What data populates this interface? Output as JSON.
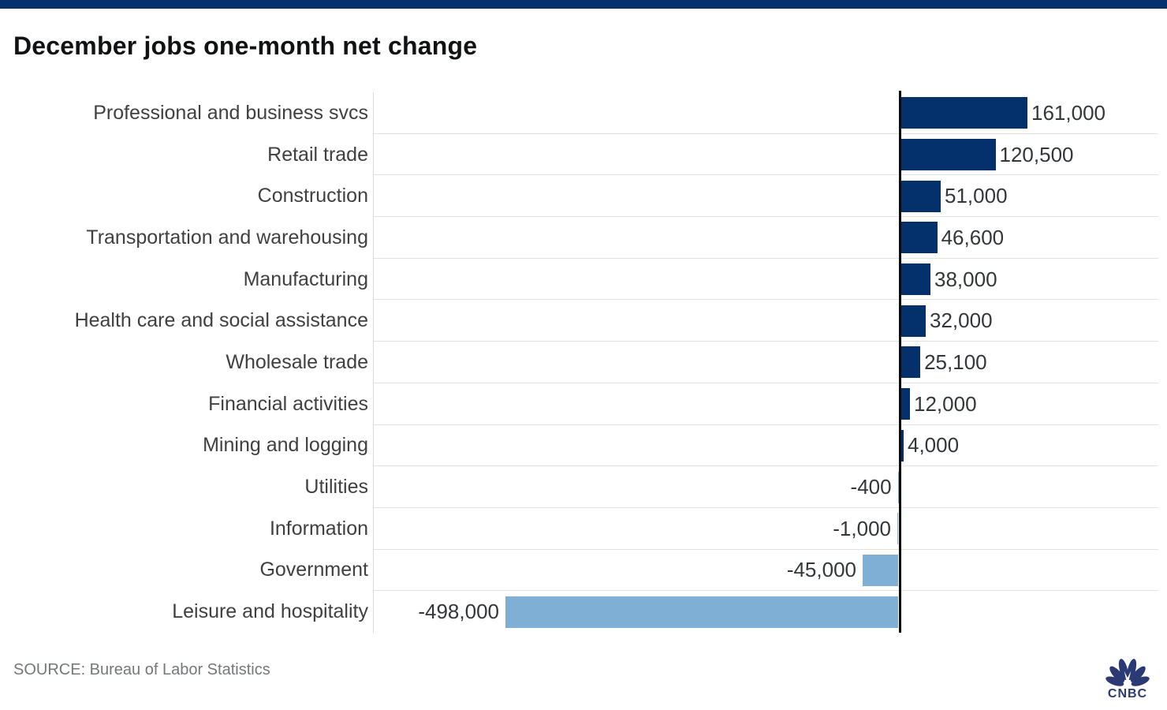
{
  "page": {
    "title": "December jobs one-month net change",
    "source": "SOURCE: Bureau of Labor Statistics",
    "brand": "CNBC"
  },
  "colors": {
    "navy": "#04306c",
    "lightblue": "#7fafd4",
    "title": "#101214",
    "category_label": "#404040",
    "value_label": "#33373b",
    "gridline": "#e2e2e2",
    "plot_border": "#d9d9d9",
    "zero_line": "#0a0a0a",
    "source_text": "#75787b",
    "logo": "#2b3a74"
  },
  "chart_data": {
    "type": "bar",
    "orientation": "horizontal",
    "title": "December jobs one-month net change",
    "xlabel": "",
    "ylabel": "",
    "grid": "row-separators",
    "legend": "none",
    "xlim": [
      -668000,
      328000
    ],
    "categories": [
      "Professional and business svcs",
      "Retail trade",
      "Construction",
      "Transportation and warehousing",
      "Manufacturing",
      "Health care and social assistance",
      "Wholesale trade",
      "Financial activities",
      "Mining and logging",
      "Utilities",
      "Information",
      "Government",
      "Leisure and hospitality"
    ],
    "values": [
      161000,
      120500,
      51000,
      46600,
      38000,
      32000,
      25100,
      12000,
      4000,
      -400,
      -1000,
      -45000,
      -498000
    ],
    "value_labels": [
      "161,000",
      "120,500",
      "51,000",
      "46,600",
      "38,000",
      "32,000",
      "25,100",
      "12,000",
      "4,000",
      "-400",
      "-1,000",
      "-45,000",
      "-498,000"
    ],
    "positive_color": "#04306c",
    "negative_color": "#7fafd4"
  }
}
